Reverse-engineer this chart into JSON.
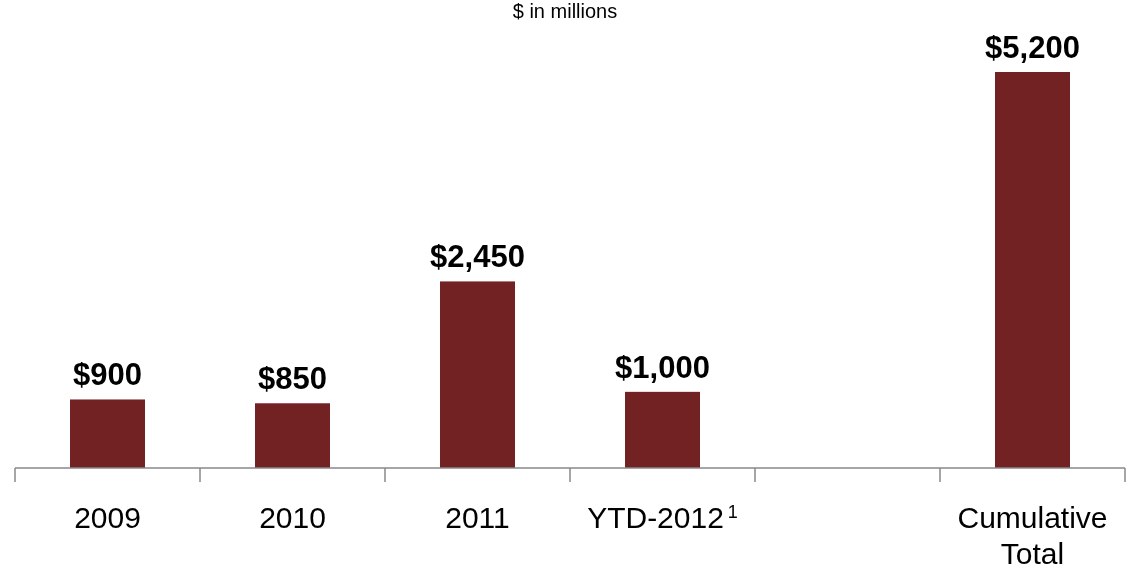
{
  "chart_data": {
    "type": "bar",
    "title": "$ in millions",
    "categories": [
      "2009",
      "2010",
      "2011",
      "YTD-2012$^{1}$",
      null,
      "Cumulative Total"
    ],
    "values": [
      900,
      850,
      2450,
      1000,
      null,
      5200
    ],
    "value_labels": [
      "$900",
      "$850",
      "$2,450",
      "$1,000",
      null,
      "$5,200"
    ],
    "color": "#722223"
  }
}
